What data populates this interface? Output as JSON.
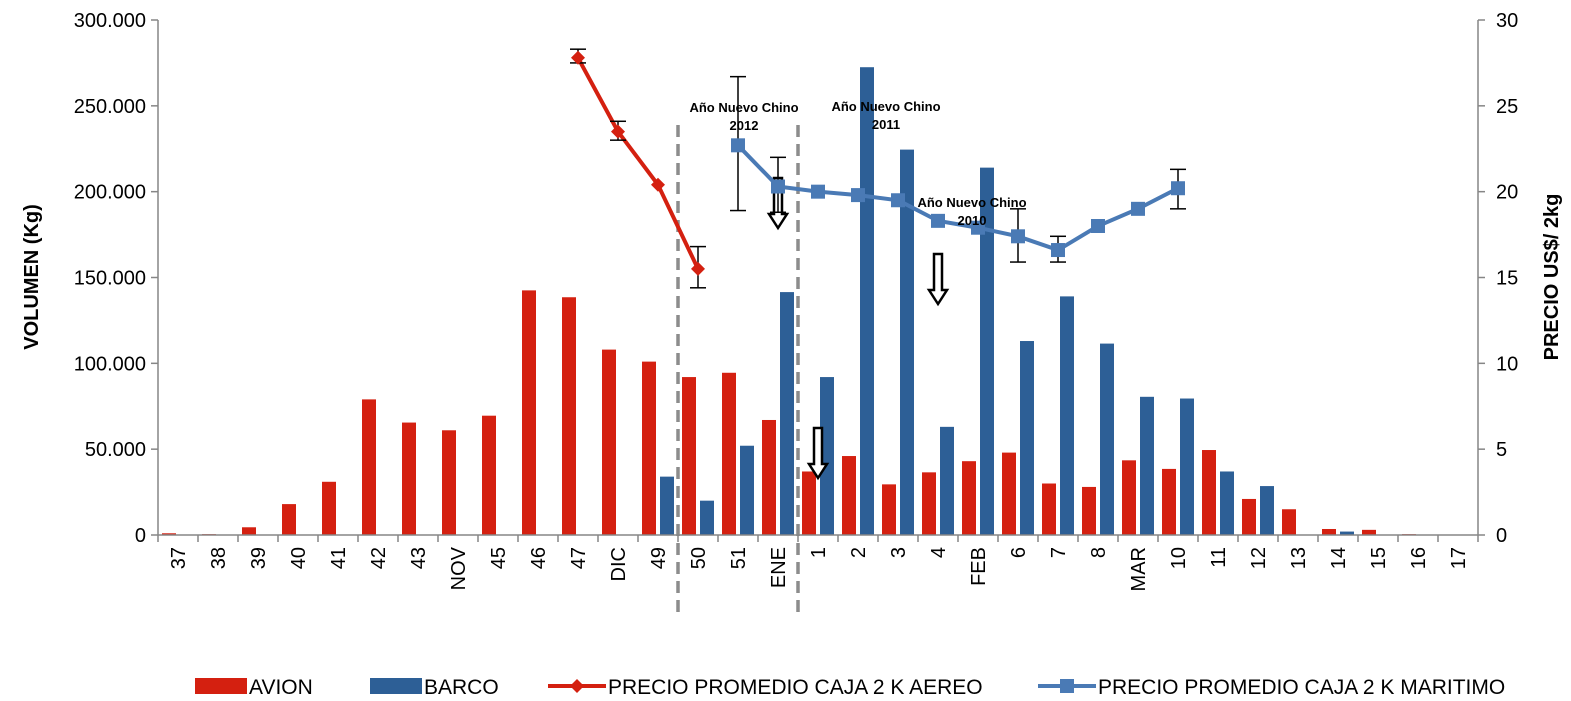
{
  "chart_data": {
    "type": "bar",
    "categories": [
      "37",
      "38",
      "39",
      "40",
      "41",
      "42",
      "43",
      "NOV",
      "45",
      "46",
      "47",
      "DIC",
      "49",
      "50",
      "51",
      "ENE",
      "1",
      "2",
      "3",
      "4",
      "FEB",
      "6",
      "7",
      "8",
      "MAR",
      "10",
      "11",
      "12",
      "13",
      "14",
      "15",
      "16",
      "17"
    ],
    "y_left": {
      "label": "VOLUMEN (Kg)",
      "range": [
        0,
        300000
      ],
      "ticks": [
        0,
        50000,
        100000,
        150000,
        200000,
        250000,
        300000
      ],
      "tick_labels": [
        "0",
        "50.000",
        "100.000",
        "150.000",
        "200.000",
        "250.000",
        "300.000"
      ]
    },
    "y_right": {
      "label": "PRECIO US$/ 2kg",
      "range": [
        0,
        30
      ],
      "ticks": [
        0,
        5,
        10,
        15,
        20,
        25,
        30
      ],
      "tick_labels": [
        "0",
        "5",
        "10",
        "15",
        "20",
        "25",
        "30"
      ]
    },
    "series": [
      {
        "name": "AVION",
        "kind": "bar",
        "axis": "left",
        "color": "#d42010",
        "values": [
          1000,
          500,
          4500,
          18000,
          31000,
          79000,
          65500,
          61000,
          69500,
          142500,
          138500,
          108000,
          101000,
          92000,
          94500,
          67000,
          37000,
          46000,
          29500,
          36500,
          43000,
          48000,
          30000,
          28000,
          43500,
          38500,
          49500,
          21000,
          15000,
          3500,
          3000,
          500,
          0
        ]
      },
      {
        "name": "BARCO",
        "kind": "bar",
        "axis": "left",
        "color": "#2d5f96",
        "values": [
          0,
          0,
          0,
          0,
          0,
          0,
          0,
          0,
          0,
          0,
          0,
          0,
          34000,
          20000,
          52000,
          141500,
          92000,
          272500,
          224500,
          63000,
          214000,
          113000,
          139000,
          111500,
          80500,
          79500,
          37000,
          28500,
          0,
          2000,
          0,
          0,
          0
        ]
      },
      {
        "name": "PRECIO PROMEDIO CAJA 2 K AEREO",
        "kind": "line",
        "axis": "right",
        "color": "#d42010",
        "marker": "diamond",
        "points": [
          {
            "x": "47",
            "y": 27.8,
            "err": [
              27.5,
              28.3
            ]
          },
          {
            "x": "DIC",
            "y": 23.5,
            "err": [
              23.0,
              24.1
            ]
          },
          {
            "x": "49",
            "y": 20.4
          },
          {
            "x": "50",
            "y": 15.5,
            "err": [
              14.4,
              16.8
            ]
          }
        ]
      },
      {
        "name": "PRECIO PROMEDIO CAJA 2 K MARITIMO",
        "kind": "line",
        "axis": "right",
        "color": "#4a7ab5",
        "marker": "square",
        "points": [
          {
            "x": "51",
            "y": 22.7,
            "err": [
              18.9,
              26.7
            ]
          },
          {
            "x": "ENE",
            "y": 20.3,
            "err": [
              18.8,
              22.0
            ]
          },
          {
            "x": "1",
            "y": 20.0
          },
          {
            "x": "2",
            "y": 19.8
          },
          {
            "x": "3",
            "y": 19.5
          },
          {
            "x": "4",
            "y": 18.3
          },
          {
            "x": "FEB",
            "y": 17.9
          },
          {
            "x": "6",
            "y": 17.4,
            "err": [
              15.9,
              19.0
            ]
          },
          {
            "x": "7",
            "y": 16.6,
            "err": [
              15.9,
              17.4
            ]
          },
          {
            "x": "8",
            "y": 18.0
          },
          {
            "x": "MAR",
            "y": 19.0
          },
          {
            "x": "10",
            "y": 20.2,
            "err": [
              19.0,
              21.3
            ]
          }
        ]
      }
    ],
    "annotations": [
      {
        "text": [
          "Año Nuevo Chino",
          "2012"
        ],
        "x_between": [
          "49",
          "50"
        ]
      },
      {
        "text": [
          "Año Nuevo Chino",
          "2011"
        ],
        "x": "2"
      },
      {
        "text": [
          "Año Nuevo Chino",
          "2010"
        ],
        "x": "FEB"
      }
    ],
    "dashed_lines_after": [
      "49",
      "ENE"
    ],
    "arrows_at": [
      "ENE",
      "1",
      "4"
    ],
    "legend": {
      "placement": "bottom",
      "items": [
        "AVION",
        "BARCO",
        "PRECIO PROMEDIO CAJA 2 K AEREO",
        "PRECIO PROMEDIO CAJA 2 K MARITIMO"
      ]
    },
    "grid": false
  }
}
